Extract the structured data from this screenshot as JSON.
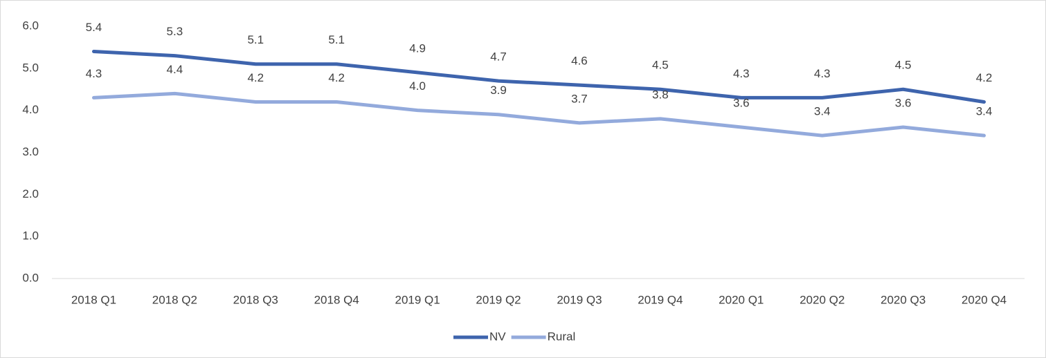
{
  "chart_data": {
    "type": "line",
    "categories": [
      "2018 Q1",
      "2018 Q2",
      "2018 Q3",
      "2018 Q4",
      "2019 Q1",
      "2019 Q2",
      "2019 Q3",
      "2019 Q4",
      "2020 Q1",
      "2020 Q2",
      "2020 Q3",
      "2020 Q4"
    ],
    "series": [
      {
        "name": "NV",
        "color": "#3e64ad",
        "values": [
          5.4,
          5.3,
          5.1,
          5.1,
          4.9,
          4.7,
          4.6,
          4.5,
          4.3,
          4.3,
          4.5,
          4.2
        ],
        "value_labels": [
          "5.4",
          "5.3",
          "5.1",
          "5.1",
          "4.9",
          "4.7",
          "4.6",
          "4.5",
          "4.3",
          "4.3",
          "4.5",
          "4.2"
        ]
      },
      {
        "name": "Rural",
        "color": "#93aadc",
        "values": [
          4.3,
          4.4,
          4.2,
          4.2,
          4.0,
          3.9,
          3.7,
          3.8,
          3.6,
          3.4,
          3.6,
          3.4
        ],
        "value_labels": [
          "4.3",
          "4.4",
          "4.2",
          "4.2",
          "4.0",
          "3.9",
          "3.7",
          "3.8",
          "3.6",
          "3.4",
          "3.6",
          "3.4"
        ]
      }
    ],
    "ylim": [
      0,
      6
    ],
    "yticks": [
      {
        "value": 0,
        "label": "0.0"
      },
      {
        "value": 1,
        "label": "1.0"
      },
      {
        "value": 2,
        "label": "2.0"
      },
      {
        "value": 3,
        "label": "3.0"
      },
      {
        "value": 4,
        "label": "4.0"
      },
      {
        "value": 5,
        "label": "5.0"
      },
      {
        "value": 6,
        "label": "6.0"
      }
    ],
    "grid": false,
    "legend": "bottom"
  }
}
